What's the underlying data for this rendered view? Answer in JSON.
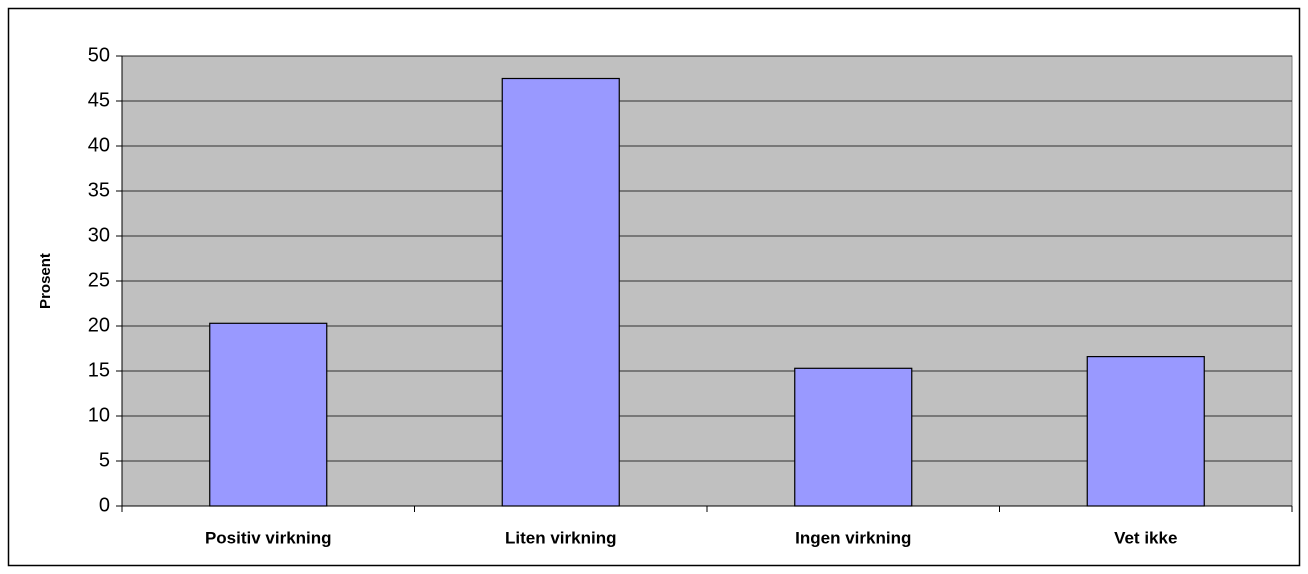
{
  "chart_data": {
    "type": "bar",
    "y_label": "Prosent",
    "categories": [
      "Positiv virkning",
      "Liten virkning",
      "Ingen virkning",
      "Vet ikke"
    ],
    "values": [
      20.3,
      47.5,
      15.3,
      16.6
    ],
    "color": "#9999ff",
    "ylim": [
      0,
      50
    ],
    "yticks": [
      0,
      5,
      10,
      15,
      20,
      25,
      30,
      35,
      40,
      45,
      50
    ],
    "grid": true
  }
}
